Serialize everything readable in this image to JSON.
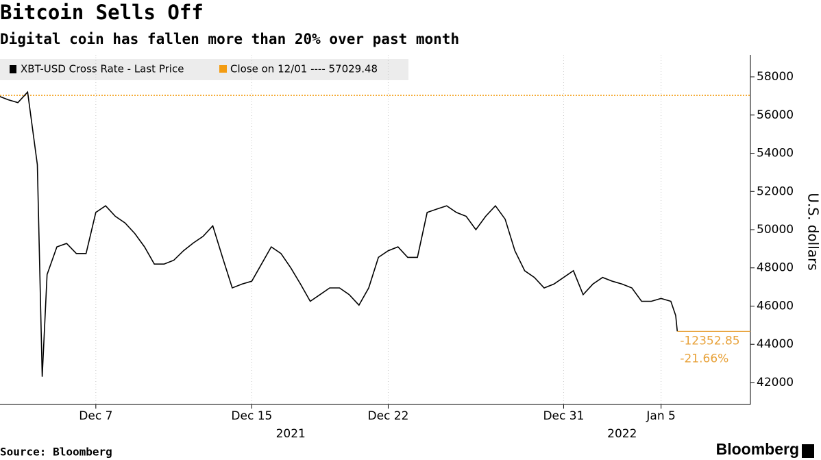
{
  "chart_data": {
    "type": "line",
    "title": "Bitcoin Sells Off",
    "subtitle": "Digital coin has fallen more than 20% over past month",
    "y_label": "U.S. dollars",
    "source": "Source: Bloomberg",
    "brand": "Bloomberg",
    "x": [
      "2021-12-02T00:00",
      "2021-12-02T12:00",
      "2021-12-03T00:00",
      "2021-12-03T12:00",
      "2021-12-04T00:00",
      "2021-12-04T06:00",
      "2021-12-04T12:00",
      "2021-12-05T00:00",
      "2021-12-05T12:00",
      "2021-12-06T00:00",
      "2021-12-06T12:00",
      "2021-12-07T00:00",
      "2021-12-07T12:00",
      "2021-12-08T00:00",
      "2021-12-08T12:00",
      "2021-12-09T00:00",
      "2021-12-09T12:00",
      "2021-12-10T00:00",
      "2021-12-10T12:00",
      "2021-12-11T00:00",
      "2021-12-11T12:00",
      "2021-12-12T00:00",
      "2021-12-12T12:00",
      "2021-12-13T00:00",
      "2021-12-13T12:00",
      "2021-12-14T00:00",
      "2021-12-14T12:00",
      "2021-12-15T00:00",
      "2021-12-15T12:00",
      "2021-12-16T00:00",
      "2021-12-16T12:00",
      "2021-12-17T00:00",
      "2021-12-17T12:00",
      "2021-12-18T00:00",
      "2021-12-18T12:00",
      "2021-12-19T00:00",
      "2021-12-19T12:00",
      "2021-12-20T00:00",
      "2021-12-20T12:00",
      "2021-12-21T00:00",
      "2021-12-21T12:00",
      "2021-12-22T00:00",
      "2021-12-22T12:00",
      "2021-12-23T00:00",
      "2021-12-23T12:00",
      "2021-12-24T00:00",
      "2021-12-24T12:00",
      "2021-12-25T00:00",
      "2021-12-25T12:00",
      "2021-12-26T00:00",
      "2021-12-26T12:00",
      "2021-12-27T00:00",
      "2021-12-27T12:00",
      "2021-12-28T00:00",
      "2021-12-28T12:00",
      "2021-12-29T00:00",
      "2021-12-29T12:00",
      "2021-12-30T00:00",
      "2021-12-30T12:00",
      "2021-12-31T00:00",
      "2021-12-31T12:00",
      "2022-01-01T00:00",
      "2022-01-01T12:00",
      "2022-01-02T00:00",
      "2022-01-02T12:00",
      "2022-01-03T00:00",
      "2022-01-03T12:00",
      "2022-01-04T00:00",
      "2022-01-04T12:00",
      "2022-01-05T00:00",
      "2022-01-05T12:00",
      "2022-01-05T18:00",
      "2022-01-05T20:00"
    ],
    "series": [
      {
        "name": "XBT-USD Cross Rate - Last Price",
        "color": "#000000",
        "values": [
          57000,
          56800,
          56650,
          57200,
          53400,
          42300,
          47650,
          49100,
          49280,
          48750,
          48750,
          50900,
          51250,
          50700,
          50350,
          49800,
          49100,
          48200,
          48200,
          48400,
          48900,
          49300,
          49650,
          50200,
          48550,
          46950,
          47150,
          47300,
          48200,
          49100,
          48750,
          48000,
          47150,
          46250,
          46600,
          46950,
          46950,
          46600,
          46050,
          46950,
          48550,
          48900,
          49100,
          48550,
          48550,
          50900,
          51080,
          51250,
          50900,
          50700,
          50000,
          50700,
          51250,
          50550,
          48900,
          47850,
          47500,
          46950,
          47150,
          47500,
          47850,
          46600,
          47150,
          47500,
          47300,
          47150,
          46950,
          46250,
          46250,
          46400,
          46250,
          45500,
          44677
        ]
      }
    ],
    "reference_line": {
      "label": "Close on 12/01 ---- 57029.48",
      "value": 57029.48,
      "color": "#f39c12"
    },
    "annotations": [
      "-12352.85",
      "-21.66%"
    ],
    "annotation_color": "#e8a23a",
    "xlim": [
      "2021-12-02T02:00",
      "2022-01-09T14:00"
    ],
    "xticks": [
      {
        "value": "2021-12-07T00:00",
        "label": "Dec 7"
      },
      {
        "value": "2021-12-15T00:00",
        "label": "Dec 15"
      },
      {
        "value": "2021-12-22T00:00",
        "label": "Dec 22"
      },
      {
        "value": "2021-12-31T00:00",
        "label": "Dec 31"
      },
      {
        "value": "2022-01-05T00:00",
        "label": "Jan 5"
      }
    ],
    "year_labels": [
      {
        "value": "2021-12-17T00:00",
        "label": "2021"
      },
      {
        "value": "2022-01-03T00:00",
        "label": "2022"
      }
    ],
    "ylim": [
      40850,
      59150
    ],
    "yticks": [
      42000,
      44000,
      46000,
      48000,
      50000,
      52000,
      54000,
      56000,
      58000
    ],
    "grid": true
  }
}
